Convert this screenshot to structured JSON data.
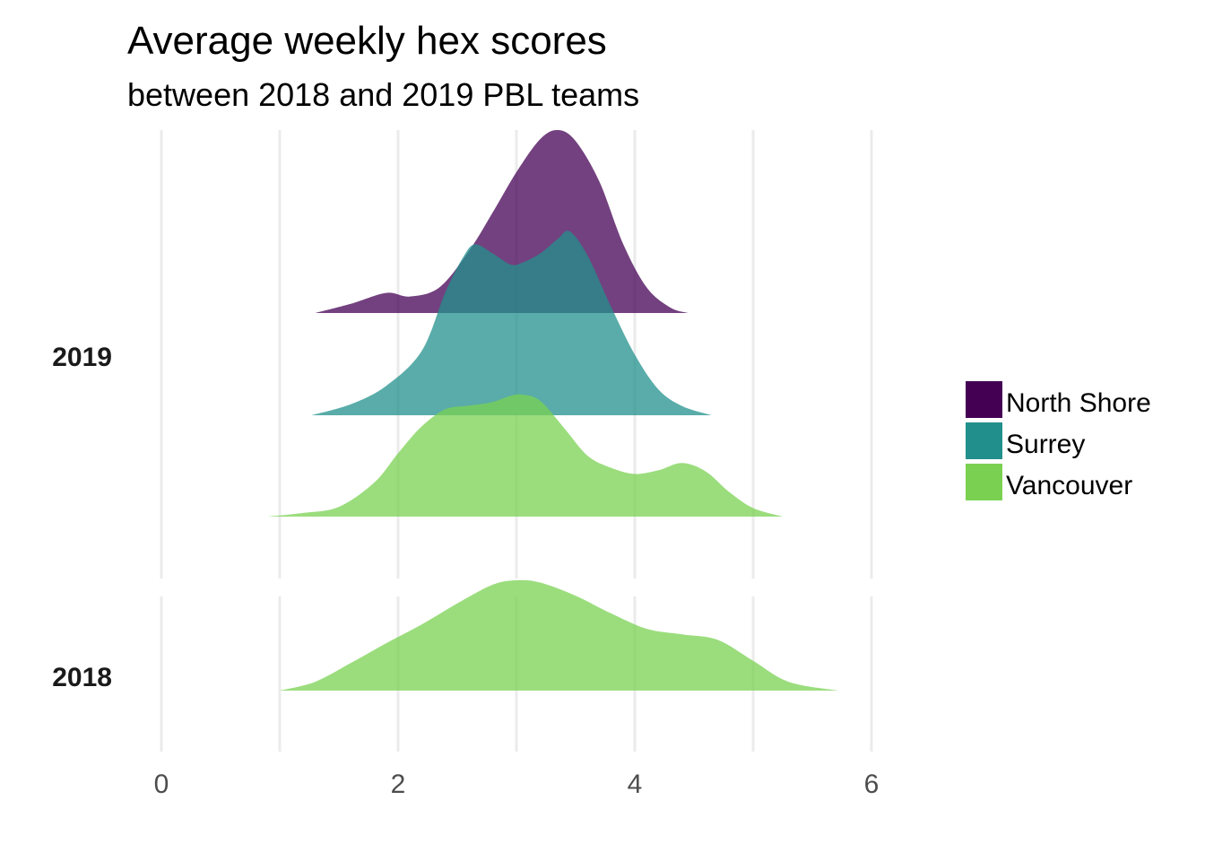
{
  "chart_data": {
    "type": "area",
    "subtype": "ridgeline-density",
    "title": "Average weekly hex scores",
    "subtitle": "between 2018 and 2019 PBL teams",
    "xlabel": "",
    "ylabel": "",
    "xlim": [
      0,
      6
    ],
    "x_ticks": [
      0,
      2,
      4,
      6
    ],
    "x_tick_labels": [
      "0",
      "2",
      "4",
      "6"
    ],
    "grid": true,
    "legend": {
      "position": "right"
    },
    "panels": [
      {
        "year": "2019",
        "series": [
          {
            "name": "North Shore",
            "color": "#440154",
            "x": [
              1.3,
              1.6,
              1.9,
              2.1,
              2.35,
              2.6,
              2.8,
              3.0,
              3.2,
              3.35,
              3.5,
              3.7,
              3.9,
              4.1,
              4.3,
              4.45
            ],
            "peak_height": 1.0,
            "density": [
              0.0,
              0.05,
              0.11,
              0.09,
              0.14,
              0.34,
              0.55,
              0.77,
              0.95,
              1.0,
              0.94,
              0.72,
              0.38,
              0.14,
              0.03,
              0.0
            ]
          },
          {
            "name": "Surrey",
            "color": "#21908C",
            "x": [
              1.27,
              1.6,
              1.9,
              2.2,
              2.4,
              2.55,
              2.65,
              2.8,
              2.95,
              3.05,
              3.2,
              3.35,
              3.45,
              3.6,
              3.8,
              4.0,
              4.2,
              4.4,
              4.65
            ],
            "peak_height": 0.74,
            "density": [
              0.0,
              0.06,
              0.16,
              0.35,
              0.67,
              0.86,
              0.93,
              0.88,
              0.82,
              0.83,
              0.88,
              0.96,
              1.0,
              0.87,
              0.59,
              0.33,
              0.14,
              0.05,
              0.0
            ]
          },
          {
            "name": "Vancouver",
            "color": "#7AD151",
            "x": [
              0.9,
              1.2,
              1.5,
              1.8,
              2.0,
              2.2,
              2.4,
              2.6,
              2.8,
              2.95,
              3.05,
              3.2,
              3.4,
              3.6,
              3.8,
              4.0,
              4.2,
              4.4,
              4.6,
              4.8,
              5.0,
              5.25
            ],
            "peak_height": 0.85,
            "density": [
              0.0,
              0.03,
              0.08,
              0.28,
              0.52,
              0.74,
              0.88,
              0.91,
              0.94,
              0.99,
              1.0,
              0.95,
              0.73,
              0.5,
              0.4,
              0.35,
              0.38,
              0.44,
              0.37,
              0.2,
              0.07,
              0.0
            ]
          }
        ]
      },
      {
        "year": "2018",
        "series": [
          {
            "name": "Vancouver",
            "color": "#7AD151",
            "x": [
              1.0,
              1.3,
              1.6,
              1.9,
              2.2,
              2.5,
              2.8,
              3.0,
              3.2,
              3.5,
              3.8,
              4.1,
              4.4,
              4.7,
              5.0,
              5.3,
              5.72
            ],
            "peak_height": 0.85,
            "density": [
              0.0,
              0.08,
              0.25,
              0.43,
              0.6,
              0.79,
              0.96,
              1.0,
              0.98,
              0.86,
              0.7,
              0.56,
              0.51,
              0.46,
              0.27,
              0.08,
              0.0
            ]
          }
        ]
      }
    ],
    "legend_entries": [
      "North Shore",
      "Surrey",
      "Vancouver"
    ],
    "colors": {
      "North Shore": "#440154",
      "Surrey": "#21908C",
      "Vancouver": "#7AD151"
    }
  }
}
